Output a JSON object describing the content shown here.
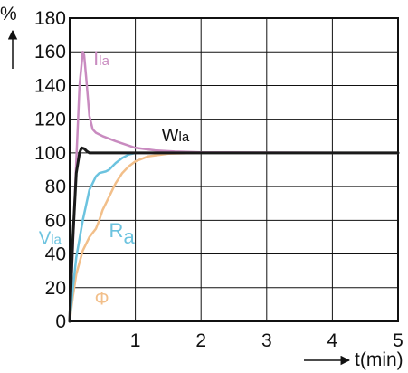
{
  "chart_data": {
    "type": "line",
    "xlabel": "t(min)",
    "ylabel": "%",
    "xlim": [
      0,
      5
    ],
    "ylim": [
      0,
      180
    ],
    "xticks": [
      1,
      2,
      3,
      4,
      5
    ],
    "xtick_labels": [
      "1",
      "2",
      "3",
      "4",
      "5"
    ],
    "yticks": [
      0,
      20,
      40,
      60,
      80,
      100,
      120,
      140,
      160,
      180
    ],
    "ytick_labels": [
      "0",
      "20",
      "40",
      "60",
      "80",
      "100",
      "120",
      "140",
      "160",
      "180"
    ],
    "x_origin_label": "0",
    "grid": true,
    "series": [
      {
        "name": "Ila",
        "color": "#c98bc0",
        "x": [
          0,
          0.05,
          0.1,
          0.15,
          0.2,
          0.22,
          0.25,
          0.3,
          0.35,
          0.4,
          0.5,
          0.7,
          1.0,
          1.3,
          1.6,
          2.0,
          5.0
        ],
        "y": [
          0,
          45,
          95,
          140,
          160,
          158,
          145,
          122,
          114,
          112,
          110,
          107,
          103,
          101.5,
          100.8,
          100.3,
          100
        ]
      },
      {
        "name": "Wla",
        "color": "#1a1a1a",
        "x": [
          0,
          0.05,
          0.1,
          0.15,
          0.18,
          0.22,
          0.26,
          0.3,
          0.4,
          0.6,
          1.0,
          5.0
        ],
        "y": [
          0,
          50,
          88,
          100,
          103,
          102.5,
          101,
          100,
          100,
          100,
          100,
          100
        ]
      },
      {
        "name": "Ra",
        "color": "#6cc3df",
        "x": [
          0,
          0.05,
          0.1,
          0.2,
          0.3,
          0.4,
          0.45,
          0.55,
          0.6,
          0.7,
          0.8,
          0.9,
          1.0,
          1.2,
          2.0,
          5.0
        ],
        "y": [
          0,
          20,
          38,
          60,
          78,
          86,
          88,
          89,
          90,
          94,
          97,
          99,
          100,
          100,
          100,
          100
        ]
      },
      {
        "name": "Φ",
        "color": "#f2bf8a",
        "x": [
          0,
          0.05,
          0.1,
          0.2,
          0.3,
          0.4,
          0.45,
          0.5,
          0.6,
          0.7,
          0.8,
          0.9,
          1.0,
          1.2,
          1.5,
          2.0,
          5.0
        ],
        "y": [
          0,
          15,
          28,
          42,
          50,
          55,
          60,
          66,
          74,
          82,
          88,
          92,
          95,
          98,
          99.5,
          100,
          100
        ]
      }
    ],
    "annotations": [
      {
        "series": "Ila",
        "text": "Ila",
        "x": 0.36,
        "y": 152
      },
      {
        "series": "Wla",
        "text": "Wla",
        "x": 1.4,
        "y": 107
      },
      {
        "series": "Ra",
        "text": "Ra",
        "x": 0.6,
        "y": 50
      },
      {
        "series": "Vla",
        "text": "Vla",
        "x": -0.47,
        "y": 46
      },
      {
        "series": "Φ",
        "text": "Φ",
        "x": 0.38,
        "y": 10
      }
    ]
  }
}
